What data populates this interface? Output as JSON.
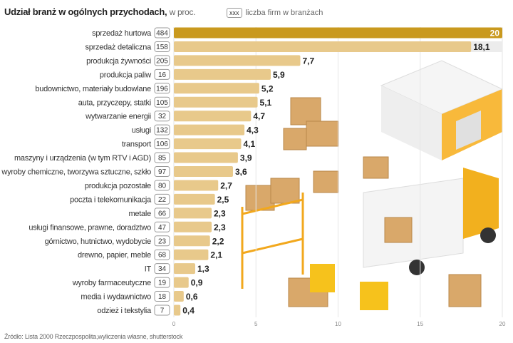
{
  "title": {
    "bold": "Udział branż w ogólnych przychodach,",
    "unit": "w proc."
  },
  "legend": {
    "sample": "xxx",
    "label": "liczba firm w branżach"
  },
  "source": "Źródło: Lista 2000 Rzeczpospolita,wyliczenia własne, shutterstock",
  "colors": {
    "highlight": "#c9991e",
    "bar": "#e8c98b",
    "row_bg": "#f1f1f1"
  },
  "chart_data": {
    "type": "bar",
    "orientation": "horizontal",
    "title": "Udział branż w ogólnych przychodach, w proc.",
    "xlabel": "",
    "ylabel": "",
    "xlim": [
      0,
      20
    ],
    "xticks": [
      0,
      5,
      10,
      15,
      20
    ],
    "grid": true,
    "categories": [
      "sprzedaż hurtowa",
      "sprzedaż detaliczna",
      "produkcja żywności",
      "produkcja paliw",
      "budownictwo, materiały budowlane",
      "auta, przyczepy, statki",
      "wytwarzanie energii",
      "usługi",
      "transport",
      "maszyny i urządzenia (w tym RTV i AGD)",
      "wyroby chemiczne, tworzywa sztuczne, szkło",
      "produkcja pozostałe",
      "poczta i telekomunikacja",
      "metale",
      "usługi finansowe, prawne, doradztwo",
      "górnictwo, hutnictwo, wydobycie",
      "drewno, papier, meble",
      "IT",
      "wyroby farmaceutyczne",
      "media i wydawnictwo",
      "odzież i tekstylia"
    ],
    "values": [
      20,
      18.1,
      7.7,
      5.9,
      5.2,
      5.1,
      4.7,
      4.3,
      4.1,
      3.9,
      3.6,
      2.7,
      2.5,
      2.3,
      2.3,
      2.2,
      2.1,
      1.3,
      0.9,
      0.6,
      0.4
    ],
    "value_labels": [
      "20",
      "18,1",
      "7,7",
      "5,9",
      "5,2",
      "5,1",
      "4,7",
      "4,3",
      "4,1",
      "3,9",
      "3,6",
      "2,7",
      "2,5",
      "2,3",
      "2,3",
      "2,2",
      "2,1",
      "1,3",
      "0,9",
      "0,6",
      "0,4"
    ],
    "firm_counts": [
      "484",
      "158",
      "205",
      "16",
      "196",
      "105",
      "32",
      "132",
      "106",
      "85",
      "97",
      "80",
      "22",
      "66",
      "47",
      "23",
      "68",
      "34",
      "19",
      "18",
      "7"
    ]
  }
}
